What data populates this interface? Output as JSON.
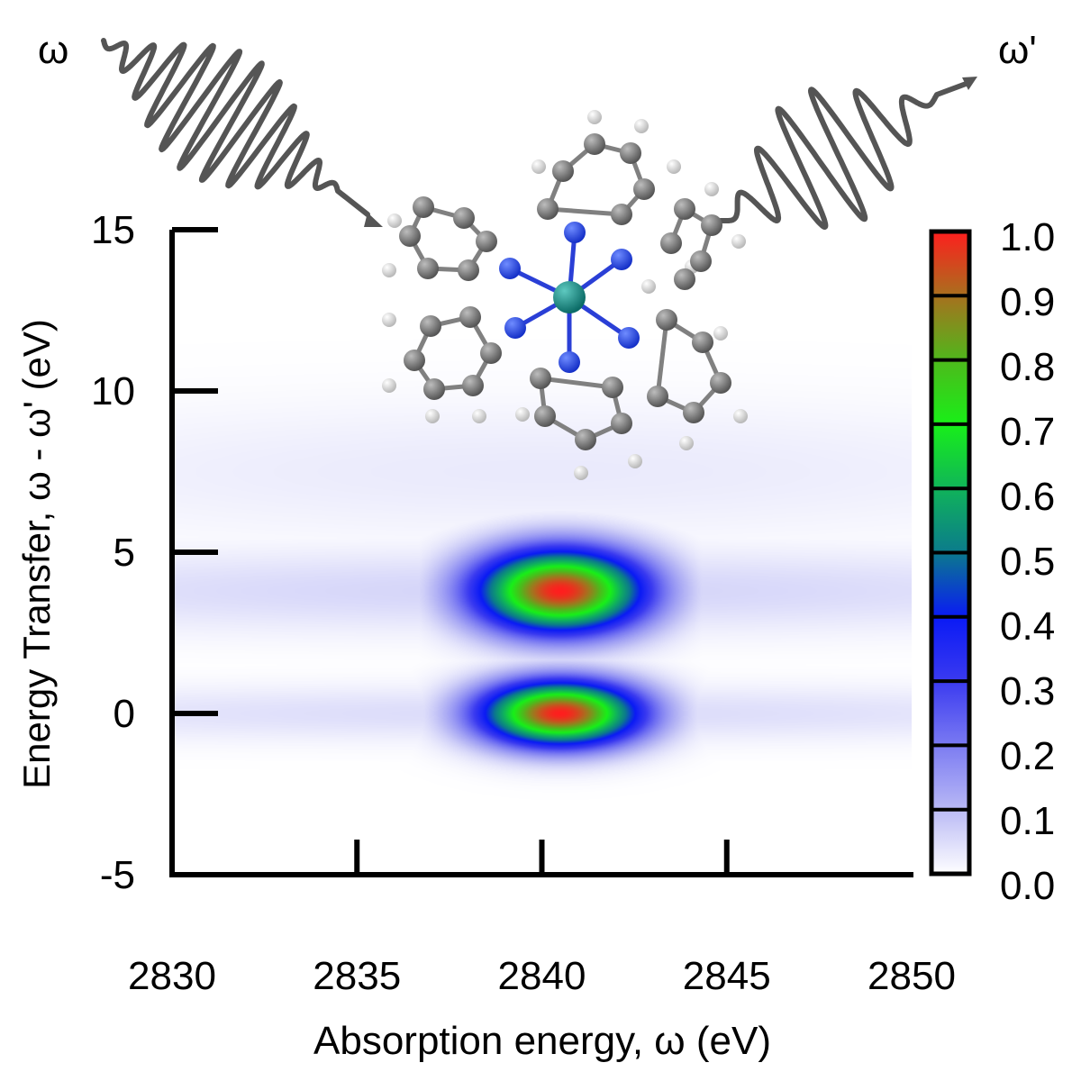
{
  "chart_data": {
    "type": "heatmap",
    "xlabel": "Absorption energy, ω (eV)",
    "ylabel": "Energy Transfer, ω - ω' (eV)",
    "xlim": [
      2830,
      2850
    ],
    "ylim": [
      -5,
      15
    ],
    "x_ticks": [
      2830,
      2835,
      2840,
      2845,
      2850
    ],
    "y_ticks": [
      -5,
      0,
      5,
      10,
      15
    ],
    "colorbar": {
      "ticks": [
        "1.0",
        "0.9",
        "0.8",
        "0.7",
        "0.6",
        "0.5",
        "0.4",
        "0.3",
        "0.2",
        "0.1",
        "0.0"
      ],
      "levels": [
        {
          "value": 0.0,
          "color": "#f4f4ff"
        },
        {
          "value": 0.1,
          "color": "#b9b9f5"
        },
        {
          "value": 0.2,
          "color": "#7b7bf2"
        },
        {
          "value": 0.3,
          "color": "#3a3af0"
        },
        {
          "value": 0.4,
          "color": "#0a1af5"
        },
        {
          "value": 0.5,
          "color": "#0b7a8c"
        },
        {
          "value": 0.6,
          "color": "#10b45a"
        },
        {
          "value": 0.7,
          "color": "#18f018"
        },
        {
          "value": 0.8,
          "color": "#4fb81c"
        },
        {
          "value": 0.9,
          "color": "#a8701e"
        },
        {
          "value": 1.0,
          "color": "#ff1e1e"
        }
      ]
    },
    "features": [
      {
        "x_center": 2840.5,
        "y_center": 0.0,
        "peak": 1.0,
        "sigma_x": 1.5,
        "sigma_y": 0.7
      },
      {
        "x_center": 2840.5,
        "y_center": 3.8,
        "peak": 1.0,
        "sigma_x": 1.6,
        "sigma_y": 0.9
      },
      {
        "x_center": 2840.0,
        "y_center": 3.8,
        "peak": 0.06,
        "sigma_x": 14.0,
        "sigma_y": 0.9
      },
      {
        "x_center": 2840.0,
        "y_center": 0.0,
        "peak": 0.05,
        "sigma_x": 14.0,
        "sigma_y": 0.6
      },
      {
        "x_center": 2840.0,
        "y_center": 7.5,
        "peak": 0.03,
        "sigma_x": 12.0,
        "sigma_y": 1.5
      }
    ],
    "annotations": [
      {
        "text": "ω",
        "role": "incident-photon"
      },
      {
        "text": "ω'",
        "role": "emitted-photon"
      }
    ]
  }
}
